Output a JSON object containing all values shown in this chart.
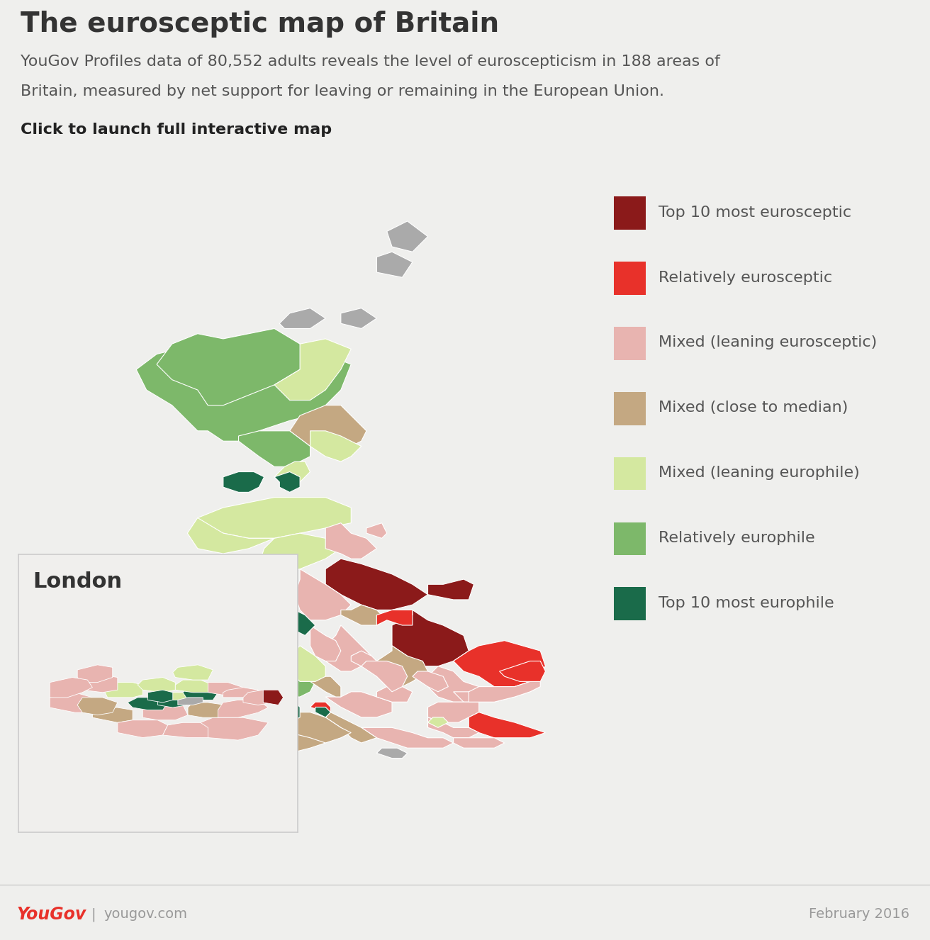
{
  "title": "The eurosceptic map of Britain",
  "subtitle1": "YouGov Profiles data of 80,552 adults reveals the level of euroscepticism in 188 areas of",
  "subtitle2": "Britain, measured by net support for leaving or remaining in the European Union.",
  "clicktext": "Click to launch full interactive map",
  "footer_right": "February 2016",
  "background_color": "#efefed",
  "map_background": "#ffffff",
  "legend_items": [
    {
      "label": "Top 10 most eurosceptic",
      "color": "#8b1a1a"
    },
    {
      "label": "Relatively eurosceptic",
      "color": "#e8312a"
    },
    {
      "label": "Mixed (leaning eurosceptic)",
      "color": "#e8b4b0"
    },
    {
      "label": "Mixed (close to median)",
      "color": "#c4a882"
    },
    {
      "label": "Mixed (leaning europhile)",
      "color": "#d4e8a0"
    },
    {
      "label": "Relatively europhile",
      "color": "#7db86a"
    },
    {
      "label": "Top 10 most europhile",
      "color": "#1a6b4a"
    }
  ],
  "london_label": "London",
  "title_fontsize": 28,
  "subtitle_fontsize": 16,
  "click_fontsize": 16,
  "legend_fontsize": 16,
  "footer_fontsize": 14,
  "title_color": "#333333",
  "subtitle_color": "#555555",
  "click_color": "#222222",
  "legend_text_color": "#555555",
  "footer_color": "#999999",
  "yougov_color": "#e8312a"
}
